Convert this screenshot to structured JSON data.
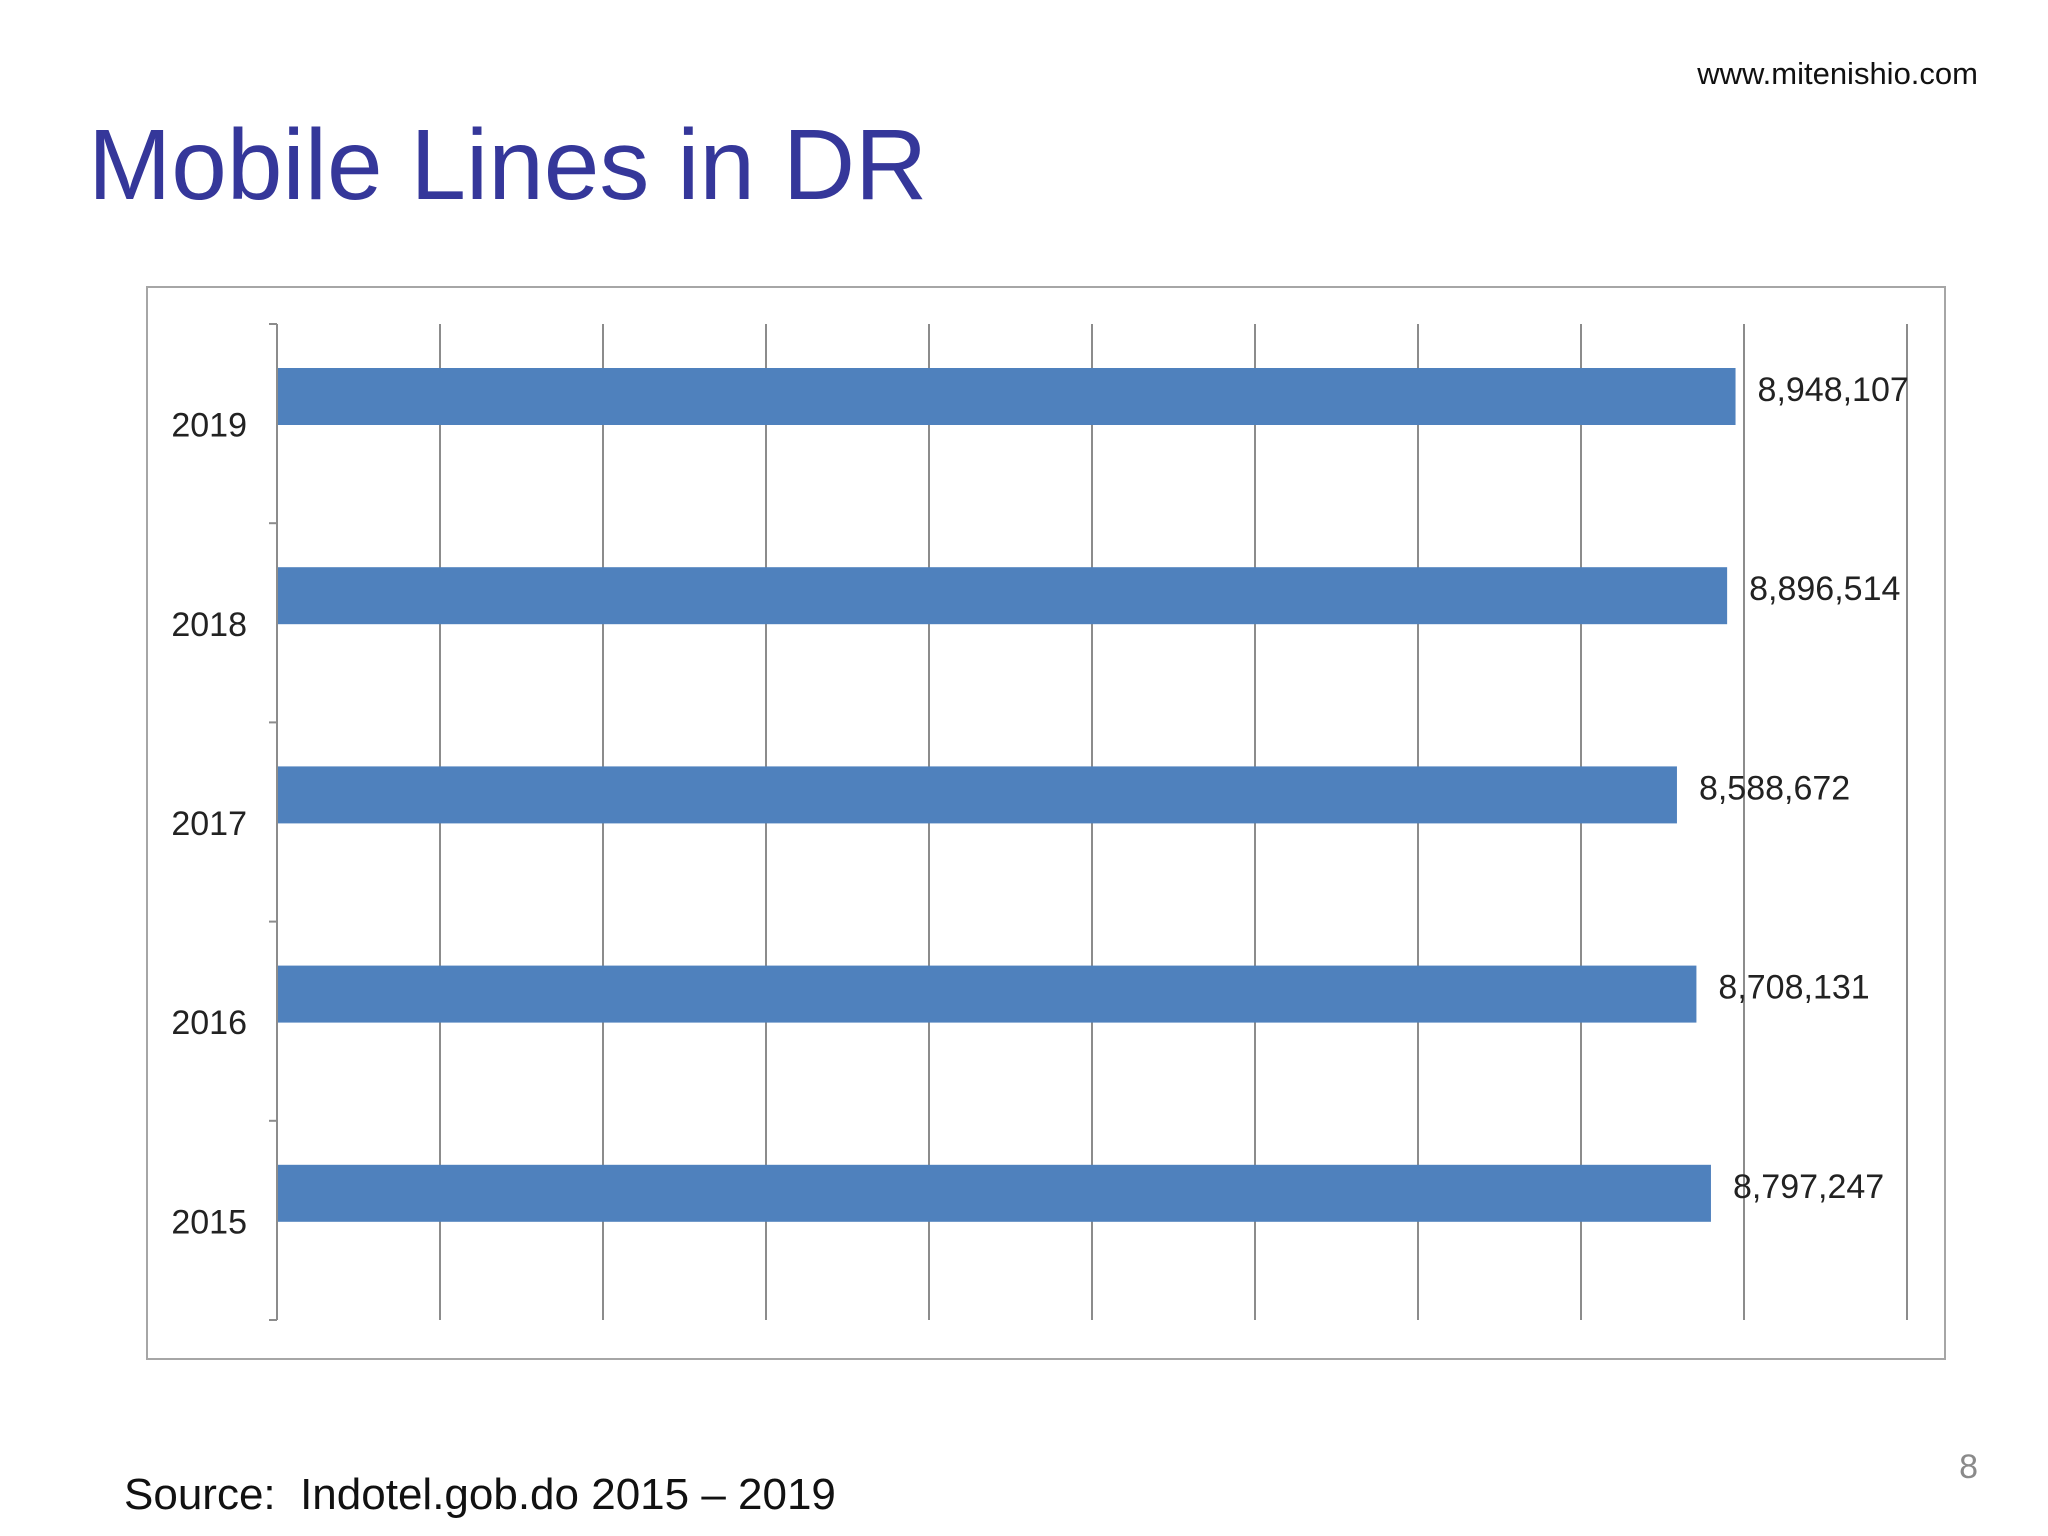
{
  "slide": {
    "website": "www.mitenishio.com",
    "title": "Mobile Lines in DR",
    "source": "Source:  Indotel.gob.do 2015 – 2019",
    "page_number": "8"
  },
  "colors": {
    "title": "#35379a",
    "bar": "#4f81bd",
    "gridline": "#8c8c8c",
    "border": "#a6a6a6"
  },
  "chart_data": {
    "type": "bar",
    "orientation": "horizontal",
    "title": "",
    "xlabel": "",
    "ylabel": "",
    "categories": [
      "2019",
      "2018",
      "2017",
      "2016",
      "2015"
    ],
    "values": [
      8948107,
      8896514,
      8588672,
      8708131,
      8797247
    ],
    "value_labels": [
      "8,948,107",
      "8,896,514",
      "8,588,672",
      "8,708,131",
      "8,797,247"
    ],
    "xlim": [
      0,
      10000000
    ],
    "x_tick_labels_shown": false,
    "grid": "vertical",
    "legend": "none"
  }
}
